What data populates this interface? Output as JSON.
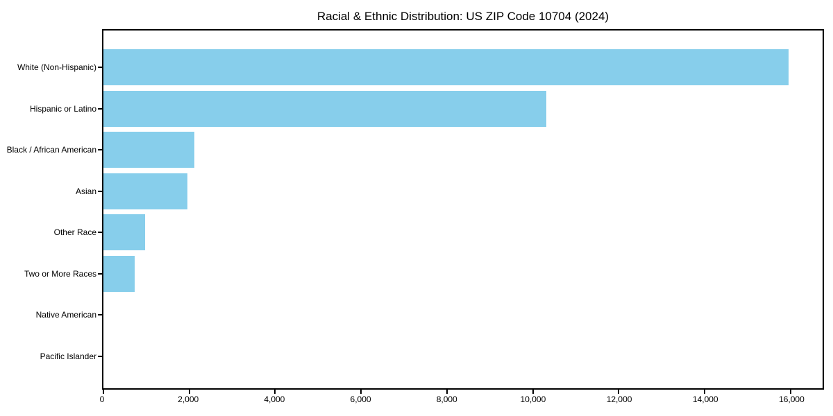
{
  "chart_data": {
    "type": "bar",
    "orientation": "horizontal",
    "title": "Racial & Ethnic Distribution: US ZIP Code 10704 (2024)",
    "categories": [
      "White (Non-Hispanic)",
      "Hispanic or Latino",
      "Black / African American",
      "Asian",
      "Other Race",
      "Two or More Races",
      "Native American",
      "Pacific Islander"
    ],
    "values": [
      15950,
      10310,
      2110,
      1950,
      965,
      725,
      0,
      0
    ],
    "xlabel": "",
    "ylabel": "",
    "xlim": [
      0,
      16750
    ],
    "xtick_values": [
      0,
      2000,
      4000,
      6000,
      8000,
      10000,
      12000,
      14000,
      16000
    ],
    "xtick_labels": [
      "0",
      "2,000",
      "4,000",
      "6,000",
      "8,000",
      "10,000",
      "12,000",
      "14,000",
      "16,000"
    ],
    "bar_color": "#87CEEB",
    "axis_color": "#000000",
    "grid": false,
    "legend": false
  }
}
